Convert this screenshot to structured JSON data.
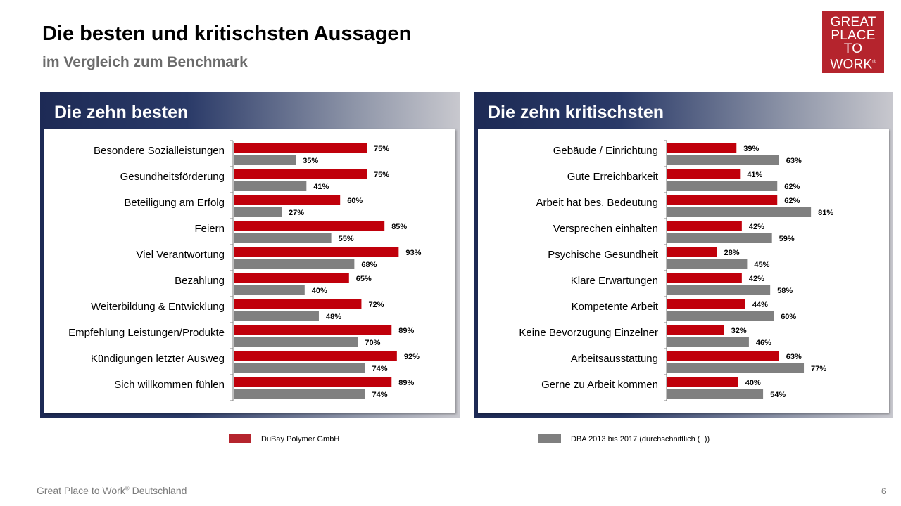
{
  "header": {
    "title": "Die besten und kritischsten Aussagen",
    "subtitle": "im Vergleich zum Benchmark"
  },
  "logo": {
    "line1": "GREAT",
    "line2": "PLACE",
    "line3": "TO",
    "line4": "WORK",
    "mark": "®"
  },
  "colors": {
    "company": "#c0000b",
    "benchmark": "#808080",
    "legend_company": "#b5242d",
    "legend_benchmark": "#7f7f7f"
  },
  "legend": {
    "company": "DuBay Polymer GmbH",
    "benchmark": "DBA 2013 bis 2017 (durchschnittlich (+))"
  },
  "footer": {
    "text": "Great Place to Work",
    "mark": "®",
    "suffix": " Deutschland",
    "page": "6"
  },
  "chart_data": [
    {
      "type": "bar",
      "orientation": "horizontal",
      "title": "Die zehn besten",
      "categories": [
        "Besondere Sozialleistungen",
        "Gesundheitsförderung",
        "Beteiligung am Erfolg",
        "Feiern",
        "Viel Verantwortung",
        "Bezahlung",
        "Weiterbildung & Entwicklung",
        "Empfehlung Leistungen/Produkte",
        "Kündigungen letzter Ausweg",
        "Sich willkommen fühlen"
      ],
      "series": [
        {
          "name": "DuBay Polymer GmbH",
          "values": [
            75,
            75,
            60,
            85,
            93,
            65,
            72,
            89,
            92,
            89
          ]
        },
        {
          "name": "DBA 2013 bis 2017 (durchschnittlich (+))",
          "values": [
            35,
            41,
            27,
            55,
            68,
            40,
            48,
            70,
            74,
            74
          ]
        }
      ],
      "value_suffix": "%",
      "xlim": [
        0,
        100
      ]
    },
    {
      "type": "bar",
      "orientation": "horizontal",
      "title": "Die zehn kritischsten",
      "categories": [
        "Gebäude / Einrichtung",
        "Gute Erreichbarkeit",
        "Arbeit hat bes. Bedeutung",
        "Versprechen einhalten",
        "Psychische Gesundheit",
        "Klare Erwartungen",
        "Kompetente Arbeit",
        "Keine Bevorzugung Einzelner",
        "Arbeitsausstattung",
        "Gerne zu Arbeit kommen"
      ],
      "series": [
        {
          "name": "DuBay Polymer GmbH",
          "values": [
            39,
            41,
            62,
            42,
            28,
            42,
            44,
            32,
            63,
            40
          ]
        },
        {
          "name": "DBA 2013 bis 2017 (durchschnittlich (+))",
          "values": [
            63,
            62,
            81,
            59,
            45,
            58,
            60,
            46,
            77,
            54
          ]
        }
      ],
      "value_suffix": "%",
      "xlim": [
        0,
        100
      ]
    }
  ]
}
